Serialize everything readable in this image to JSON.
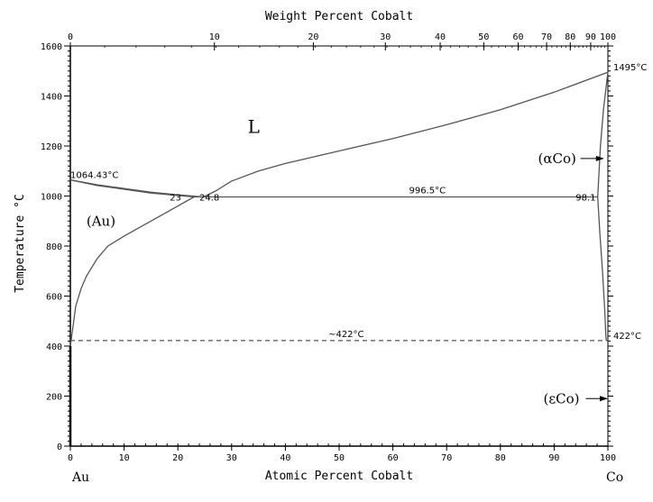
{
  "chart_data": {
    "type": "line",
    "title": "",
    "xlabel": "Atomic Percent Cobalt",
    "x2label": "Weight Percent Cobalt",
    "ylabel": "Temperature °C",
    "xlim": [
      0,
      100
    ],
    "ylim": [
      0,
      1600
    ],
    "grid": false,
    "x_ticks": [
      "0",
      "10",
      "20",
      "30",
      "40",
      "50",
      "60",
      "70",
      "80",
      "90",
      "100"
    ],
    "y_ticks": [
      "0",
      "200",
      "400",
      "600",
      "800",
      "1000",
      "1200",
      "1400",
      "1600"
    ],
    "x2_ticks": [
      {
        "wt": 0,
        "at": 0,
        "label": "0"
      },
      {
        "wt": 10,
        "at": 26.8,
        "label": "10"
      },
      {
        "wt": 20,
        "at": 45.2,
        "label": "20"
      },
      {
        "wt": 30,
        "at": 58.6,
        "label": "30"
      },
      {
        "wt": 40,
        "at": 68.8,
        "label": "40"
      },
      {
        "wt": 50,
        "at": 76.9,
        "label": "50"
      },
      {
        "wt": 60,
        "at": 83.3,
        "label": "60"
      },
      {
        "wt": 70,
        "at": 88.6,
        "label": "70"
      },
      {
        "wt": 80,
        "at": 93.0,
        "label": "80"
      },
      {
        "wt": 90,
        "at": 96.8,
        "label": "90"
      },
      {
        "wt": 100,
        "at": 100,
        "label": "100"
      }
    ],
    "element_labels": {
      "left": "Au",
      "right": "Co"
    },
    "series": [
      {
        "name": "liquidus-Au-side",
        "style": "solid",
        "points": [
          [
            0,
            1064.43
          ],
          [
            5,
            1045
          ],
          [
            10,
            1030
          ],
          [
            15,
            1015
          ],
          [
            20,
            1005
          ],
          [
            24.8,
            996.5
          ]
        ]
      },
      {
        "name": "solidus-Au-side",
        "style": "solid",
        "points": [
          [
            0,
            1064.43
          ],
          [
            5,
            1042
          ],
          [
            10,
            1027
          ],
          [
            15,
            1012
          ],
          [
            20,
            1002
          ],
          [
            23,
            996.5
          ]
        ]
      },
      {
        "name": "liquidus-Co-side",
        "style": "solid",
        "points": [
          [
            24.8,
            996.5
          ],
          [
            27,
            1020
          ],
          [
            30,
            1060
          ],
          [
            35,
            1100
          ],
          [
            40,
            1130
          ],
          [
            50,
            1180
          ],
          [
            60,
            1230
          ],
          [
            70,
            1285
          ],
          [
            80,
            1345
          ],
          [
            90,
            1415
          ],
          [
            100,
            1495
          ]
        ]
      },
      {
        "name": "solvus-Au",
        "style": "solid",
        "points": [
          [
            23,
            996.5
          ],
          [
            20,
            960
          ],
          [
            15,
            900
          ],
          [
            10,
            840
          ],
          [
            7,
            800
          ],
          [
            5,
            750
          ],
          [
            3,
            680
          ],
          [
            2,
            630
          ],
          [
            1,
            560
          ],
          [
            0.5,
            480
          ],
          [
            0,
            400
          ]
        ]
      },
      {
        "name": "solidus-Co",
        "style": "solid",
        "points": [
          [
            100,
            1495
          ],
          [
            99.2,
            1350
          ],
          [
            98.6,
            1200
          ],
          [
            98.1,
            996.5
          ]
        ]
      },
      {
        "name": "solvus-Co",
        "style": "solid",
        "points": [
          [
            98.1,
            996.5
          ],
          [
            98.5,
            850
          ],
          [
            99,
            700
          ],
          [
            99.4,
            550
          ],
          [
            99.6,
            450
          ],
          [
            99.7,
            422
          ]
        ]
      },
      {
        "name": "eutectic-isotherm",
        "style": "solid",
        "points": [
          [
            23,
            996.5
          ],
          [
            98.1,
            996.5
          ]
        ]
      },
      {
        "name": "magnetic-transition",
        "style": "dashed",
        "points": [
          [
            0,
            422
          ],
          [
            100,
            422
          ]
        ]
      }
    ],
    "annotations": [
      {
        "text": "1064.43°C",
        "x": 0,
        "y": 1064.43
      },
      {
        "text": "23",
        "x": 18.5,
        "y": 975
      },
      {
        "text": "24.8",
        "x": 24,
        "y": 975
      },
      {
        "text": "996.5°C",
        "x": 63,
        "y": 1003
      },
      {
        "text": "98.1",
        "x": 94,
        "y": 975
      },
      {
        "text": "1495°C",
        "x": 101,
        "y": 1495
      },
      {
        "text": "~422°C",
        "x": 48,
        "y": 428
      },
      {
        "text": "422°C",
        "x": 101,
        "y": 422
      }
    ],
    "phase_labels": [
      {
        "text": "L",
        "x": 33,
        "y": 1270,
        "size": "big"
      },
      {
        "text": "(Au)",
        "x": 3,
        "y": 900
      },
      {
        "text": "(αCo)",
        "x": 87,
        "y": 1150,
        "arrow_to_x": 99.3
      },
      {
        "text": "(εCo)",
        "x": 88,
        "y": 190,
        "arrow_to_x": 100
      }
    ]
  }
}
